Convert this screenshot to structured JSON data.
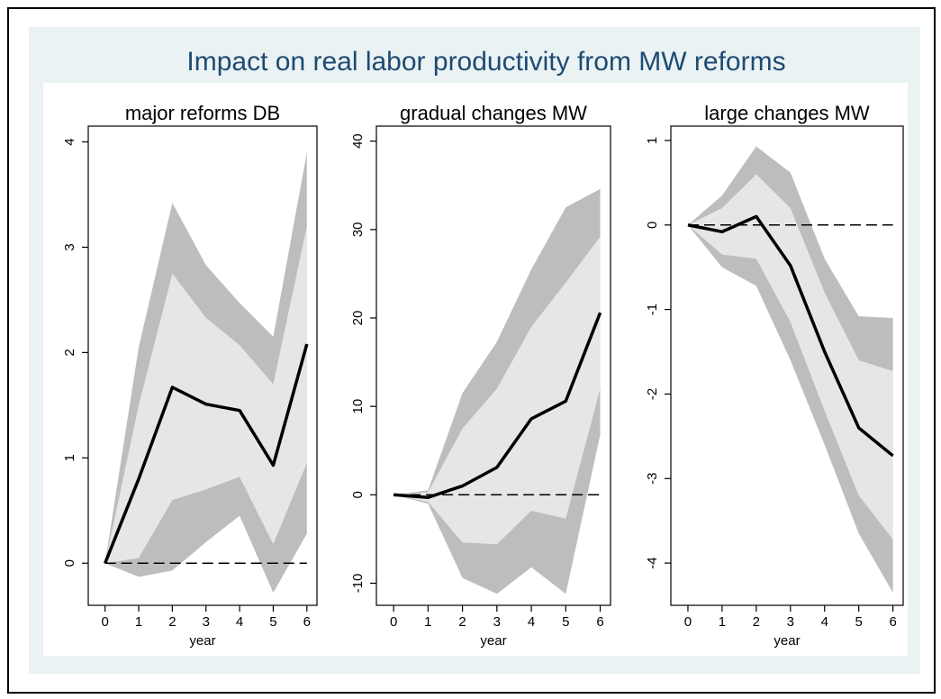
{
  "title": "Impact on real labor productivity from MW reforms",
  "chart_data": [
    {
      "type": "line",
      "title": "major reforms DB",
      "xlabel": "year",
      "x": [
        0,
        1,
        2,
        3,
        4,
        5,
        6
      ],
      "values": [
        0,
        0.8,
        1.67,
        1.51,
        1.45,
        0.93,
        2.08
      ],
      "bands": [
        {
          "color": "#bdbdbd",
          "upper": [
            0,
            2.05,
            3.42,
            2.83,
            2.47,
            2.15,
            3.9
          ],
          "lower": [
            0,
            -0.13,
            -0.07,
            0.2,
            0.45,
            -0.28,
            0.28
          ]
        },
        {
          "color": "#e6e6e6",
          "upper": [
            0,
            1.5,
            2.75,
            2.33,
            2.07,
            1.7,
            3.2
          ],
          "lower": [
            0,
            0.05,
            0.6,
            0.7,
            0.82,
            0.18,
            0.95
          ]
        }
      ],
      "reference_line": 0,
      "color": "#000000",
      "xlim": [
        -0.5,
        6.3
      ],
      "ylim": [
        -0.4,
        4.15
      ],
      "xticks": [
        0,
        1,
        2,
        3,
        4,
        5,
        6
      ],
      "yticks": [
        0,
        1,
        2,
        3,
        4
      ]
    },
    {
      "type": "line",
      "title": "gradual changes MW",
      "xlabel": "year",
      "x": [
        0,
        1,
        2,
        3,
        4,
        5,
        6
      ],
      "values": [
        0,
        -0.3,
        1,
        3.1,
        8.6,
        10.6,
        20.6
      ],
      "bands": [
        {
          "color": "#bdbdbd",
          "upper": [
            0,
            0.5,
            11.5,
            17.3,
            25.5,
            32.5,
            34.6
          ],
          "lower": [
            0,
            -1,
            -9.4,
            -11.2,
            -8.2,
            -11.2,
            6.8
          ]
        },
        {
          "color": "#e6e6e6",
          "upper": [
            0,
            0.3,
            7.5,
            12,
            19,
            24,
            29.2
          ],
          "lower": [
            0,
            -0.8,
            -5.4,
            -5.6,
            -1.8,
            -2.7,
            12
          ]
        }
      ],
      "reference_line": 0,
      "color": "#000000",
      "xlim": [
        -0.5,
        6.3
      ],
      "ylim": [
        -12.5,
        41.7
      ],
      "xticks": [
        0,
        1,
        2,
        3,
        4,
        5,
        6
      ],
      "yticks": [
        -10,
        0,
        10,
        20,
        30,
        40
      ]
    },
    {
      "type": "line",
      "title": "large changes MW",
      "xlabel": "year",
      "x": [
        0,
        1,
        2,
        3,
        4,
        5,
        6
      ],
      "values": [
        0,
        -0.08,
        0.1,
        -0.48,
        -1.5,
        -2.4,
        -2.73
      ],
      "bands": [
        {
          "color": "#bdbdbd",
          "upper": [
            0,
            0.35,
            0.93,
            0.62,
            -0.4,
            -1.08,
            -1.1
          ],
          "lower": [
            0,
            -0.5,
            -0.72,
            -1.6,
            -2.6,
            -3.65,
            -4.35
          ]
        },
        {
          "color": "#e6e6e6",
          "upper": [
            0,
            0.2,
            0.6,
            0.2,
            -0.8,
            -1.6,
            -1.73
          ],
          "lower": [
            0,
            -0.35,
            -0.4,
            -1.15,
            -2.2,
            -3.2,
            -3.72
          ]
        }
      ],
      "reference_line": 0,
      "color": "#000000",
      "xlim": [
        -0.5,
        6.3
      ],
      "ylim": [
        -4.5,
        1.17
      ],
      "xticks": [
        0,
        1,
        2,
        3,
        4,
        5,
        6
      ],
      "yticks": [
        -4,
        -3,
        -2,
        -1,
        0,
        1
      ]
    }
  ]
}
